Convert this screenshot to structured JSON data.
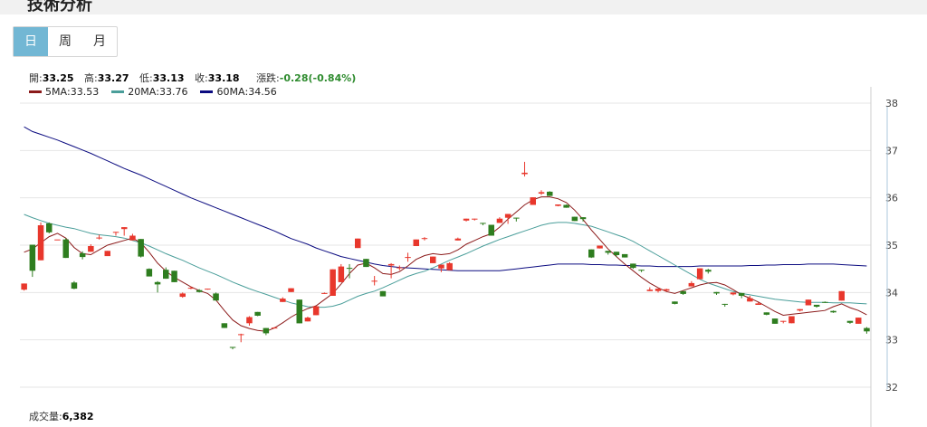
{
  "header": {
    "title": "技術分析"
  },
  "tabs": [
    {
      "label": "日",
      "active": true
    },
    {
      "label": "周",
      "active": false
    },
    {
      "label": "月",
      "active": false
    }
  ],
  "ohlc": {
    "open_label": "開:",
    "open": "33.25",
    "high_label": "高:",
    "high": "33.27",
    "low_label": "低:",
    "low": "33.13",
    "close_label": "收:",
    "close": "33.18",
    "change_label": "漲跌:",
    "change": "-0.28(-0.84%)"
  },
  "volume": {
    "label": "成交量:",
    "value": "6,382"
  },
  "colors": {
    "up": "#e8372c",
    "down": "#2e7d1f",
    "ma5": "#8b1a1a",
    "ma20": "#4a9e9a",
    "ma60": "#0b0b80",
    "grid": "#e6e6e6"
  },
  "chart_data": {
    "type": "candlestick",
    "ylim": [
      32,
      38
    ],
    "yticks": [
      "32",
      "33",
      "34",
      "35",
      "36",
      "37",
      "38"
    ],
    "legend": [
      {
        "name": "5MA",
        "value": "33.53",
        "color": "#8b1a1a"
      },
      {
        "name": "20MA",
        "value": "33.76",
        "color": "#4a9e9a"
      },
      {
        "name": "60MA",
        "value": "34.56",
        "color": "#0b0b80"
      }
    ],
    "candles": [
      [
        34.06,
        34.19,
        34.04,
        34.19
      ],
      [
        35.01,
        34.46,
        35.01,
        34.33
      ],
      [
        34.68,
        35.42,
        35.48,
        34.68
      ],
      [
        35.46,
        35.27,
        35.48,
        35.25
      ],
      [
        35.12,
        35.12,
        35.12,
        35.12
      ],
      [
        35.12,
        34.73,
        35.15,
        34.73
      ],
      [
        34.21,
        34.08,
        34.24,
        34.07
      ],
      [
        34.83,
        34.75,
        34.87,
        34.7
      ],
      [
        34.86,
        34.98,
        35.02,
        34.86
      ],
      [
        35.15,
        35.16,
        35.22,
        35.12
      ],
      [
        34.77,
        34.88,
        34.88,
        34.77
      ],
      [
        35.27,
        35.28,
        35.28,
        35.2
      ],
      [
        35.34,
        35.38,
        35.38,
        35.2
      ],
      [
        35.1,
        35.2,
        35.24,
        35.1
      ],
      [
        35.13,
        34.76,
        35.13,
        34.74
      ],
      [
        34.5,
        34.34,
        34.51,
        34.34
      ],
      [
        34.22,
        34.17,
        34.24,
        34.0
      ],
      [
        34.48,
        34.29,
        34.53,
        34.29
      ],
      [
        34.46,
        34.22,
        34.46,
        34.22
      ],
      [
        33.91,
        33.98,
        34.0,
        33.89
      ],
      [
        34.09,
        34.1,
        34.13,
        34.07
      ],
      [
        34.05,
        34.01,
        34.07,
        34.0
      ],
      [
        34.06,
        34.08,
        34.08,
        34.06
      ],
      [
        33.98,
        33.83,
        34.0,
        33.83
      ],
      [
        33.35,
        33.25,
        33.35,
        33.25
      ],
      [
        32.85,
        32.83,
        32.85,
        32.8
      ],
      [
        33.1,
        33.12,
        33.13,
        32.95
      ],
      [
        33.35,
        33.48,
        33.5,
        33.3
      ],
      [
        33.59,
        33.51,
        33.59,
        33.5
      ],
      [
        33.25,
        33.14,
        33.25,
        33.1
      ],
      [
        33.24,
        33.26,
        33.27,
        33.24
      ],
      [
        33.8,
        33.87,
        33.9,
        33.8
      ],
      [
        34.01,
        34.09,
        34.09,
        34.01
      ],
      [
        33.85,
        33.35,
        33.85,
        33.35
      ],
      [
        33.39,
        33.47,
        33.49,
        33.39
      ],
      [
        33.52,
        33.71,
        33.71,
        33.52
      ],
      [
        33.97,
        33.99,
        34.0,
        33.97
      ],
      [
        33.93,
        34.49,
        34.49,
        33.93
      ],
      [
        34.22,
        34.55,
        34.6,
        34.22
      ],
      [
        34.52,
        34.5,
        34.6,
        34.3
      ],
      [
        34.94,
        35.14,
        35.14,
        34.94
      ],
      [
        34.71,
        34.54,
        34.71,
        34.54
      ],
      [
        34.24,
        34.25,
        34.35,
        34.15
      ],
      [
        34.03,
        33.92,
        34.03,
        33.92
      ],
      [
        34.57,
        34.6,
        34.62,
        34.3
      ],
      [
        34.53,
        34.53,
        34.57,
        34.47
      ],
      [
        34.74,
        34.75,
        34.84,
        34.65
      ],
      [
        34.98,
        35.12,
        35.12,
        34.98
      ],
      [
        35.13,
        35.15,
        35.17,
        35.1
      ],
      [
        34.62,
        34.76,
        34.76,
        34.62
      ],
      [
        34.51,
        34.59,
        34.59,
        34.43
      ],
      [
        34.47,
        34.62,
        34.64,
        34.47
      ],
      [
        35.1,
        35.14,
        35.16,
        35.1
      ],
      [
        35.52,
        35.56,
        35.56,
        35.5
      ],
      [
        35.54,
        35.56,
        35.56,
        35.52
      ],
      [
        35.47,
        35.46,
        35.47,
        35.42
      ],
      [
        35.43,
        35.2,
        35.43,
        35.2
      ],
      [
        35.47,
        35.56,
        35.59,
        35.47
      ],
      [
        35.58,
        35.66,
        35.66,
        35.45
      ],
      [
        35.58,
        35.57,
        35.58,
        35.5
      ],
      [
        36.5,
        36.53,
        36.76,
        36.45
      ],
      [
        35.85,
        36.01,
        36.01,
        35.85
      ],
      [
        36.09,
        36.12,
        36.16,
        36.06
      ],
      [
        36.13,
        36.04,
        36.14,
        36.04
      ],
      [
        35.83,
        35.86,
        35.86,
        35.82
      ],
      [
        35.85,
        35.79,
        35.86,
        35.79
      ],
      [
        35.6,
        35.51,
        35.6,
        35.51
      ],
      [
        35.59,
        35.55,
        35.59,
        35.5
      ],
      [
        34.91,
        34.74,
        34.91,
        34.73
      ],
      [
        34.93,
        34.99,
        34.99,
        34.93
      ],
      [
        34.88,
        34.84,
        34.88,
        34.8
      ],
      [
        34.86,
        34.79,
        34.86,
        34.75
      ],
      [
        34.81,
        34.74,
        34.81,
        34.74
      ],
      [
        34.61,
        34.52,
        34.61,
        34.5
      ],
      [
        34.48,
        34.46,
        34.48,
        34.43
      ],
      [
        34.03,
        34.06,
        34.11,
        34.03
      ],
      [
        34.03,
        34.08,
        34.08,
        34.0
      ],
      [
        34.04,
        34.07,
        34.08,
        34.02
      ],
      [
        33.81,
        33.76,
        33.81,
        33.75
      ],
      [
        34.03,
        33.97,
        34.03,
        33.95
      ],
      [
        34.13,
        34.2,
        34.24,
        34.13
      ],
      [
        34.28,
        34.51,
        34.51,
        34.28
      ],
      [
        34.48,
        34.44,
        34.5,
        34.4
      ],
      [
        34.01,
        33.98,
        34.01,
        33.95
      ],
      [
        33.76,
        33.74,
        33.76,
        33.7
      ],
      [
        33.96,
        34.0,
        34.0,
        33.94
      ],
      [
        33.99,
        33.93,
        33.99,
        33.88
      ],
      [
        33.81,
        33.88,
        33.93,
        33.81
      ],
      [
        33.74,
        33.77,
        33.79,
        33.74
      ],
      [
        33.58,
        33.53,
        33.58,
        33.52
      ],
      [
        33.45,
        33.34,
        33.45,
        33.34
      ],
      [
        33.4,
        33.4,
        33.4,
        33.35
      ],
      [
        33.35,
        33.5,
        33.5,
        33.35
      ],
      [
        33.62,
        33.65,
        33.65,
        33.6
      ],
      [
        33.73,
        33.85,
        33.85,
        33.73
      ],
      [
        33.74,
        33.7,
        33.74,
        33.68
      ],
      [
        33.8,
        33.79,
        33.81,
        33.78
      ],
      [
        33.61,
        33.58,
        33.62,
        33.57
      ],
      [
        33.83,
        34.03,
        34.03,
        33.83
      ],
      [
        33.4,
        33.36,
        33.4,
        33.34
      ],
      [
        33.34,
        33.47,
        33.47,
        33.34
      ],
      [
        33.25,
        33.18,
        33.27,
        33.13
      ]
    ],
    "ma5": [
      34.85,
      34.92,
      35.05,
      35.18,
      35.25,
      35.15,
      34.95,
      34.82,
      34.8,
      34.9,
      35.0,
      35.05,
      35.1,
      35.15,
      35.05,
      34.85,
      34.62,
      34.45,
      34.32,
      34.22,
      34.12,
      34.04,
      33.98,
      33.84,
      33.62,
      33.42,
      33.3,
      33.24,
      33.2,
      33.18,
      33.25,
      33.36,
      33.48,
      33.58,
      33.66,
      33.72,
      33.85,
      33.98,
      34.18,
      34.4,
      34.58,
      34.62,
      34.52,
      34.4,
      34.38,
      34.44,
      34.56,
      34.7,
      34.78,
      34.82,
      34.8,
      34.82,
      34.9,
      35.02,
      35.1,
      35.18,
      35.24,
      35.38,
      35.55,
      35.7,
      35.85,
      35.96,
      36.02,
      36.02,
      35.98,
      35.9,
      35.74,
      35.54,
      35.32,
      35.12,
      34.92,
      34.76,
      34.6,
      34.46,
      34.32,
      34.2,
      34.1,
      34.02,
      33.98,
      34.04,
      34.1,
      34.16,
      34.2,
      34.21,
      34.16,
      34.06,
      33.95,
      33.88,
      33.8,
      33.7,
      33.6,
      33.52,
      33.54,
      33.56,
      33.58,
      33.6,
      33.62,
      33.7,
      33.76,
      33.68,
      33.62,
      33.53
    ],
    "ma20": [
      35.65,
      35.58,
      35.52,
      35.46,
      35.42,
      35.38,
      35.35,
      35.3,
      35.25,
      35.22,
      35.2,
      35.18,
      35.15,
      35.1,
      35.05,
      34.98,
      34.9,
      34.82,
      34.75,
      34.68,
      34.6,
      34.52,
      34.45,
      34.38,
      34.3,
      34.22,
      34.15,
      34.08,
      34.02,
      33.96,
      33.9,
      33.84,
      33.78,
      33.74,
      33.7,
      33.69,
      33.69,
      33.71,
      33.76,
      33.84,
      33.92,
      33.98,
      34.03,
      34.1,
      34.18,
      34.26,
      34.34,
      34.4,
      34.45,
      34.52,
      34.6,
      34.68,
      34.75,
      34.82,
      34.9,
      34.98,
      35.05,
      35.12,
      35.18,
      35.24,
      35.3,
      35.36,
      35.42,
      35.46,
      35.48,
      35.48,
      35.46,
      35.43,
      35.4,
      35.34,
      35.28,
      35.22,
      35.16,
      35.08,
      34.98,
      34.88,
      34.78,
      34.68,
      34.58,
      34.48,
      34.38,
      34.28,
      34.2,
      34.14,
      34.08,
      34.02,
      33.98,
      33.95,
      33.92,
      33.89,
      33.86,
      33.84,
      33.82,
      33.8,
      33.79,
      33.79,
      33.79,
      33.78,
      33.78,
      33.78,
      33.77,
      33.76
    ],
    "ma60": [
      37.5,
      37.4,
      37.34,
      37.28,
      37.22,
      37.15,
      37.08,
      37.01,
      36.94,
      36.86,
      36.78,
      36.7,
      36.62,
      36.55,
      36.48,
      36.4,
      36.32,
      36.24,
      36.16,
      36.08,
      36.0,
      35.93,
      35.86,
      35.79,
      35.72,
      35.65,
      35.58,
      35.51,
      35.44,
      35.37,
      35.3,
      35.22,
      35.14,
      35.08,
      35.02,
      34.94,
      34.88,
      34.82,
      34.76,
      34.72,
      34.68,
      34.64,
      34.6,
      34.57,
      34.55,
      34.53,
      34.52,
      34.51,
      34.5,
      34.49,
      34.48,
      34.47,
      34.46,
      34.46,
      34.46,
      34.46,
      34.46,
      34.46,
      34.48,
      34.5,
      34.52,
      34.54,
      34.56,
      34.58,
      34.6,
      34.6,
      34.6,
      34.6,
      34.59,
      34.59,
      34.58,
      34.58,
      34.57,
      34.57,
      34.56,
      34.56,
      34.55,
      34.55,
      34.55,
      34.55,
      34.55,
      34.56,
      34.56,
      34.56,
      34.56,
      34.56,
      34.56,
      34.57,
      34.57,
      34.58,
      34.58,
      34.59,
      34.59,
      34.59,
      34.6,
      34.6,
      34.6,
      34.6,
      34.59,
      34.58,
      34.57,
      34.56
    ]
  }
}
